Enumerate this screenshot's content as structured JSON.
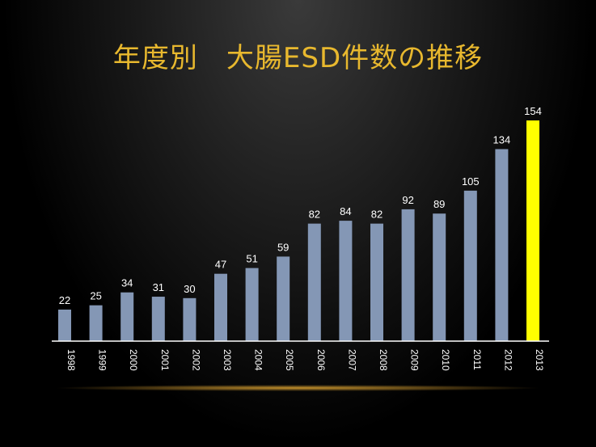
{
  "chart_data": {
    "type": "bar",
    "title": "年度別　大腸ESD件数の推移",
    "categories": [
      "1998",
      "1999",
      "2000",
      "2001",
      "2002",
      "2003",
      "2004",
      "2005",
      "2006",
      "2007",
      "2008",
      "2009",
      "2010",
      "2011",
      "2012",
      "2013"
    ],
    "values": [
      22,
      25,
      34,
      31,
      30,
      47,
      51,
      59,
      82,
      84,
      82,
      92,
      89,
      105,
      134,
      154
    ],
    "xlabel": "",
    "ylabel": "",
    "ylim": [
      0,
      154
    ],
    "grid": false,
    "legend": "none",
    "bar_color": "#8497b5",
    "highlight_color": "#ffff00",
    "highlight_category": "2013",
    "title_color": "#e8b82e"
  }
}
